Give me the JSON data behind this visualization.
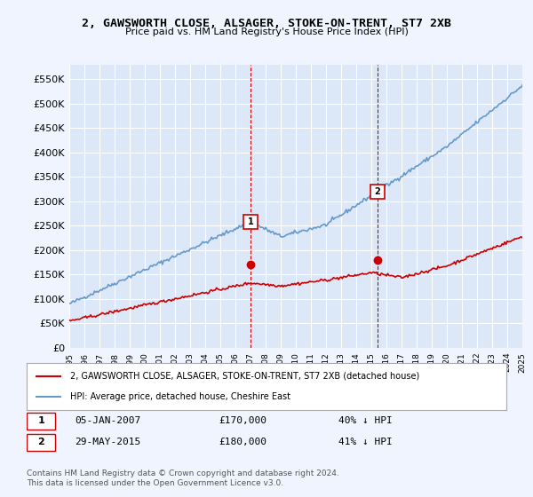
{
  "title": "2, GAWSWORTH CLOSE, ALSAGER, STOKE-ON-TRENT, ST7 2XB",
  "subtitle": "Price paid vs. HM Land Registry's House Price Index (HPI)",
  "red_label": "2, GAWSWORTH CLOSE, ALSAGER, STOKE-ON-TRENT, ST7 2XB (detached house)",
  "blue_label": "HPI: Average price, detached house, Cheshire East",
  "footer": "Contains HM Land Registry data © Crown copyright and database right 2024.\nThis data is licensed under the Open Government Licence v3.0.",
  "annotation1": {
    "num": "1",
    "date": "05-JAN-2007",
    "price": "£170,000",
    "pct": "40% ↓ HPI"
  },
  "annotation2": {
    "num": "2",
    "date": "29-MAY-2015",
    "price": "£180,000",
    "pct": "41% ↓ HPI"
  },
  "ylim": [
    0,
    580000
  ],
  "yticks": [
    0,
    50000,
    100000,
    150000,
    200000,
    250000,
    300000,
    350000,
    400000,
    450000,
    500000,
    550000
  ],
  "background_color": "#f0f4ff",
  "plot_bg": "#dce8f8",
  "red_color": "#cc0000",
  "blue_color": "#6699cc",
  "grid_color": "#ffffff",
  "marker1_x": 2007.0,
  "marker1_y": 170000,
  "marker2_x": 2015.4,
  "marker2_y": 180000,
  "vline1_x": 2007.0,
  "vline2_x": 2015.4,
  "xmin": 1995,
  "xmax": 2025
}
